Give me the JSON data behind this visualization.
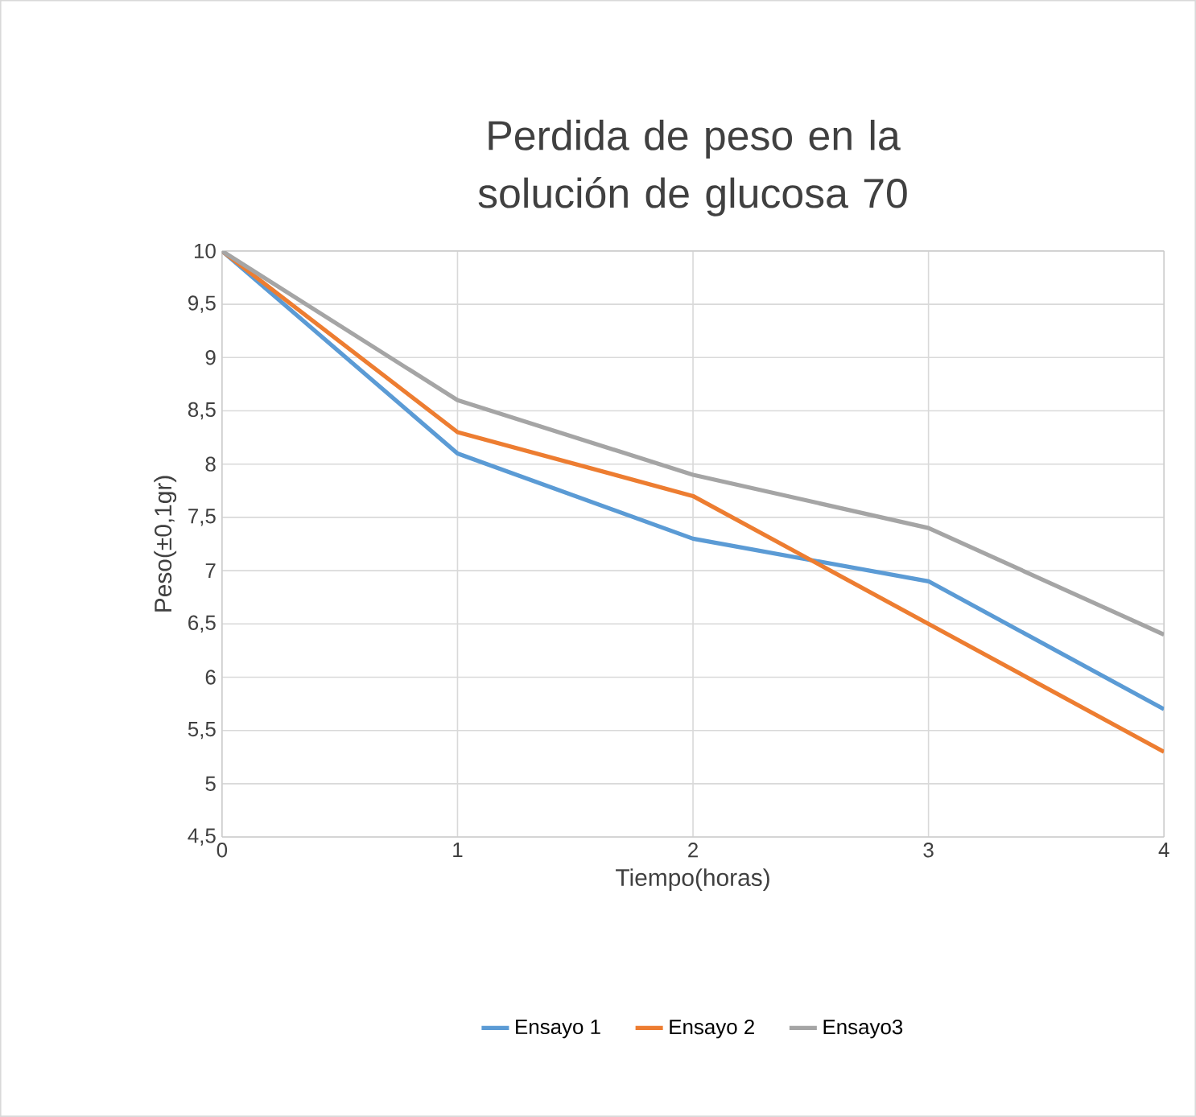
{
  "chart_data": {
    "type": "line",
    "title": "Perdida de peso en la solución de glucosa 70",
    "xlabel": "Tiempo(horas)",
    "ylabel": "Peso(±0,1gr)",
    "x": [
      0,
      1,
      2,
      3,
      4
    ],
    "series": [
      {
        "name": "Ensayo 1",
        "color": "#5b9bd5",
        "values": [
          10,
          8.1,
          7.3,
          6.9,
          5.7
        ]
      },
      {
        "name": "Ensayo 2",
        "color": "#ed7d31",
        "values": [
          10,
          8.3,
          7.7,
          6.5,
          5.3
        ]
      },
      {
        "name": "Ensayo3",
        "color": "#a5a5a5",
        "values": [
          10,
          8.6,
          7.9,
          7.4,
          6.4
        ]
      }
    ],
    "xlim": [
      0,
      4
    ],
    "xticks": [
      0,
      1,
      2,
      3,
      4
    ],
    "ylim": [
      4.5,
      10
    ],
    "yticks": [
      {
        "value": 4.5,
        "label": "4,5"
      },
      5,
      {
        "value": 5.5,
        "label": "5,5"
      },
      6,
      {
        "value": 6.5,
        "label": "6,5"
      },
      7,
      {
        "value": 7.5,
        "label": "7,5"
      },
      8,
      {
        "value": 8.5,
        "label": "8,5"
      },
      9,
      {
        "value": 9.5,
        "label": "9,5"
      },
      10
    ],
    "grid": true,
    "legend": "bottom",
    "marker": "none",
    "line_style": "solid"
  }
}
